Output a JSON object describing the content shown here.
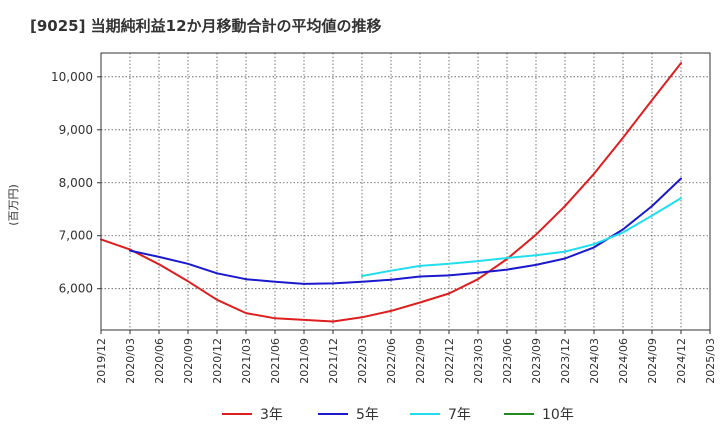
{
  "chart_data": {
    "type": "line",
    "title": "[9025]  当期純利益12か月移動合計の平均値の推移",
    "ylabel": "(百万円)",
    "xlabel": "",
    "x_ticks": [
      "2019/12",
      "2020/03",
      "2020/06",
      "2020/09",
      "2020/12",
      "2021/03",
      "2021/06",
      "2021/09",
      "2021/12",
      "2022/03",
      "2022/06",
      "2022/09",
      "2022/12",
      "2023/03",
      "2023/06",
      "2023/09",
      "2023/12",
      "2024/03",
      "2024/06",
      "2024/09",
      "2024/12",
      "2025/03"
    ],
    "y_ticks": [
      6000,
      7000,
      8000,
      9000,
      10000
    ],
    "y_tick_labels": [
      "6,000",
      "7,000",
      "8,000",
      "9,000",
      "10,000"
    ],
    "ylim": [
      5220,
      10450
    ],
    "grid": true,
    "legend_position": "bottom",
    "series": [
      {
        "name": "3年",
        "color": "#dd1f1f",
        "x": [
          "2019/12",
          "2020/03",
          "2020/06",
          "2020/09",
          "2020/12",
          "2021/03",
          "2021/06",
          "2021/09",
          "2021/12",
          "2022/03",
          "2022/06",
          "2022/09",
          "2022/12",
          "2023/03",
          "2023/06",
          "2023/09",
          "2023/12",
          "2024/03",
          "2024/06",
          "2024/09",
          "2024/12"
        ],
        "values": [
          6930,
          6740,
          6460,
          6140,
          5790,
          5540,
          5440,
          5410,
          5380,
          5460,
          5580,
          5740,
          5910,
          6180,
          6560,
          7020,
          7560,
          8170,
          8850,
          9560,
          10260
        ]
      },
      {
        "name": "5年",
        "color": "#1a1acc",
        "x": [
          "2020/03",
          "2020/06",
          "2020/09",
          "2020/12",
          "2021/03",
          "2021/06",
          "2021/09",
          "2021/12",
          "2022/03",
          "2022/06",
          "2022/09",
          "2022/12",
          "2023/03",
          "2023/06",
          "2023/09",
          "2023/12",
          "2024/03",
          "2024/06",
          "2024/09",
          "2024/12"
        ],
        "values": [
          6720,
          6600,
          6470,
          6290,
          6180,
          6130,
          6090,
          6100,
          6130,
          6170,
          6230,
          6250,
          6300,
          6360,
          6450,
          6570,
          6780,
          7120,
          7560,
          8080
        ]
      },
      {
        "name": "7年",
        "color": "#22ddee",
        "x": [
          "2022/03",
          "2022/06",
          "2022/09",
          "2022/12",
          "2023/03",
          "2023/06",
          "2023/09",
          "2023/12",
          "2024/03",
          "2024/06",
          "2024/09",
          "2024/12"
        ],
        "values": [
          6240,
          6340,
          6430,
          6470,
          6520,
          6580,
          6630,
          6700,
          6840,
          7060,
          7380,
          7710
        ]
      },
      {
        "name": "10年",
        "color": "#228822",
        "x": [],
        "values": []
      }
    ]
  }
}
